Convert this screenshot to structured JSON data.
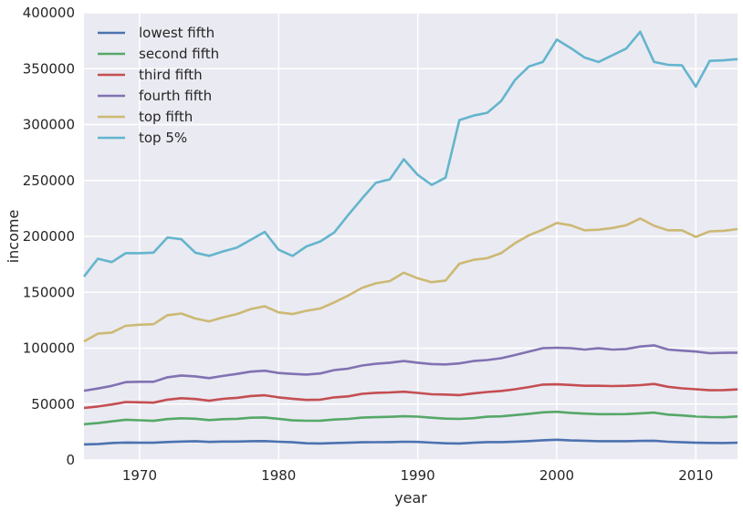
{
  "chart_data": {
    "type": "line",
    "xlabel": "year",
    "ylabel": "income",
    "xlim": [
      1966,
      2013
    ],
    "ylim": [
      0,
      400000
    ],
    "x_ticks": [
      1970,
      1980,
      1990,
      2000,
      2010
    ],
    "y_ticks": [
      0,
      50000,
      100000,
      150000,
      200000,
      250000,
      300000,
      350000,
      400000
    ],
    "grid": true,
    "legend_position": "top-left",
    "background": "#eaeaf2",
    "x": [
      1966,
      1967,
      1968,
      1969,
      1970,
      1971,
      1972,
      1973,
      1974,
      1975,
      1976,
      1977,
      1978,
      1979,
      1980,
      1981,
      1982,
      1983,
      1984,
      1985,
      1986,
      1987,
      1988,
      1989,
      1990,
      1991,
      1992,
      1993,
      1994,
      1995,
      1996,
      1997,
      1998,
      1999,
      2000,
      2001,
      2002,
      2003,
      2004,
      2005,
      2006,
      2007,
      2008,
      2009,
      2010,
      2011,
      2012,
      2013
    ],
    "series": [
      {
        "name": "lowest fifth",
        "color": "#4c72b0",
        "values": [
          14000,
          14200,
          15200,
          15600,
          15400,
          15400,
          16100,
          16500,
          16800,
          16200,
          16500,
          16500,
          16800,
          16900,
          16300,
          15800,
          14900,
          14800,
          15200,
          15400,
          15800,
          15900,
          16000,
          16300,
          16200,
          15500,
          14900,
          14800,
          15400,
          16000,
          16000,
          16400,
          16900,
          17600,
          18100,
          17500,
          17200,
          16800,
          16800,
          16800,
          17100,
          17200,
          16300,
          15800,
          15400,
          15300,
          15200,
          15400
        ]
      },
      {
        "name": "second fifth",
        "color": "#55a868",
        "values": [
          32000,
          33000,
          34500,
          36000,
          35500,
          35000,
          36600,
          37300,
          36900,
          35700,
          36500,
          36800,
          37800,
          38000,
          36800,
          35400,
          35100,
          35200,
          36200,
          36700,
          37900,
          38300,
          38600,
          39100,
          38800,
          37800,
          37000,
          36700,
          37400,
          38700,
          39000,
          40200,
          41300,
          42600,
          43100,
          42100,
          41500,
          41000,
          41000,
          41100,
          41700,
          42400,
          40600,
          39800,
          38900,
          38400,
          38200,
          38900
        ]
      },
      {
        "name": "third fifth",
        "color": "#c44e52",
        "values": [
          46500,
          47800,
          49600,
          51800,
          51600,
          51300,
          54000,
          55300,
          54500,
          53000,
          54700,
          55600,
          57200,
          57900,
          56000,
          54800,
          53700,
          54000,
          56000,
          56900,
          59200,
          60100,
          60400,
          61100,
          60000,
          58800,
          58500,
          58000,
          59500,
          60800,
          61700,
          63300,
          65200,
          67400,
          67700,
          67100,
          66400,
          66400,
          66100,
          66400,
          66900,
          68000,
          65500,
          64100,
          63300,
          62400,
          62500,
          63100
        ]
      },
      {
        "name": "fourth fifth",
        "color": "#8172b2",
        "values": [
          62000,
          63900,
          66300,
          69600,
          70000,
          70000,
          74000,
          75600,
          74800,
          73200,
          75200,
          77000,
          79000,
          79800,
          77800,
          77000,
          76400,
          77400,
          80400,
          81700,
          84500,
          86000,
          87000,
          88500,
          87000,
          85800,
          85500,
          86400,
          88500,
          89400,
          91000,
          93900,
          97000,
          100000,
          100400,
          100000,
          98800,
          99900,
          98800,
          99300,
          101500,
          102500,
          98800,
          97800,
          97000,
          95500,
          95800,
          96000
        ]
      },
      {
        "name": "top fifth",
        "color": "#ccb974",
        "values": [
          106000,
          113000,
          114000,
          120000,
          121000,
          121500,
          129500,
          131000,
          126500,
          124000,
          127500,
          130500,
          135000,
          137500,
          132000,
          130500,
          133500,
          135500,
          141000,
          147000,
          154000,
          158000,
          160000,
          167500,
          162500,
          159000,
          160500,
          175500,
          179000,
          180500,
          185000,
          194000,
          201000,
          206000,
          212000,
          210000,
          205500,
          206000,
          207500,
          210000,
          216000,
          209500,
          205500,
          205500,
          199500,
          204500,
          205000,
          206500
        ]
      },
      {
        "name": "top 5%",
        "color": "#64b5cd",
        "values": [
          164000,
          180000,
          177000,
          185000,
          185000,
          185500,
          199000,
          197500,
          185500,
          182500,
          186500,
          190000,
          197000,
          204000,
          188000,
          182500,
          191000,
          195500,
          203500,
          219000,
          234000,
          248000,
          251000,
          269000,
          255000,
          246000,
          252500,
          304000,
          308000,
          310500,
          321000,
          340000,
          352000,
          356000,
          376000,
          368500,
          360000,
          356000,
          362000,
          368000,
          383000,
          356000,
          353500,
          353000,
          334000,
          357000,
          357500,
          358500
        ]
      }
    ]
  }
}
